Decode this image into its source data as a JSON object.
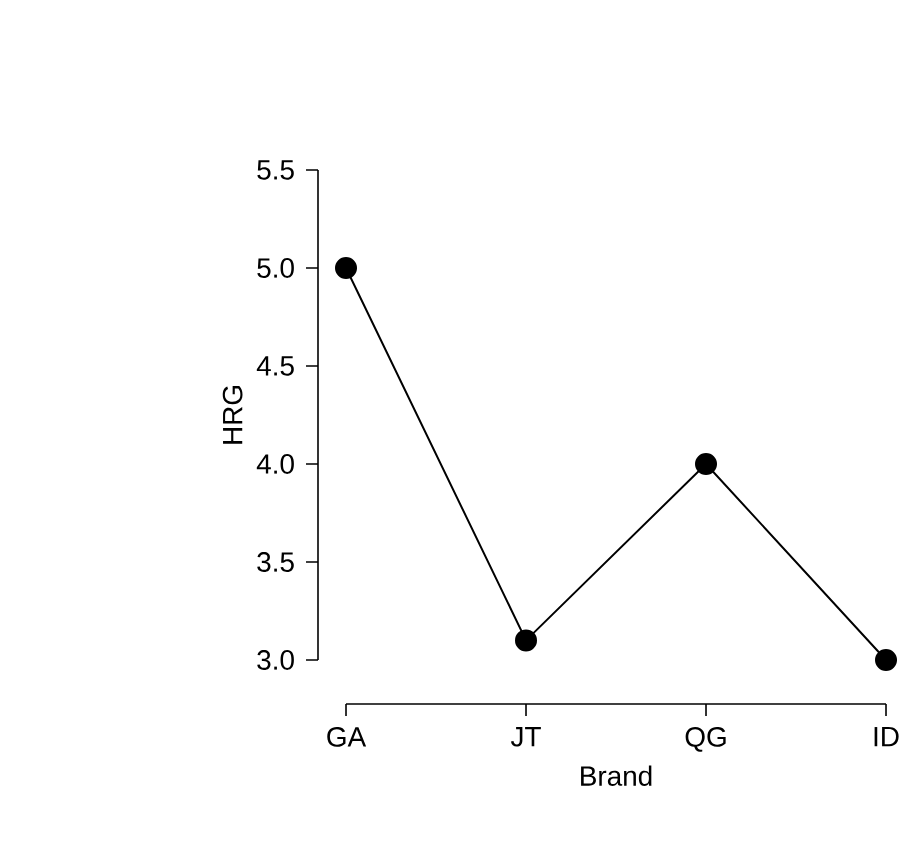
{
  "chart_data": {
    "type": "line",
    "xlabel": "Brand",
    "ylabel": "HRG",
    "categories": [
      "GA",
      "JT",
      "QG",
      "ID"
    ],
    "values": [
      5.0,
      3.1,
      4.0,
      3.0
    ],
    "color": "#000000",
    "marker": "circle",
    "line_style": "solid",
    "grid": false,
    "ylim": [
      3.0,
      5.5
    ],
    "yticks": [
      {
        "value": 3.0,
        "label": "3.0"
      },
      {
        "value": 3.5,
        "label": "3.5"
      },
      {
        "value": 4.0,
        "label": "4.0"
      },
      {
        "value": 4.5,
        "label": "4.5"
      },
      {
        "value": 5.0,
        "label": "5.0"
      },
      {
        "value": 5.5,
        "label": "5.5"
      }
    ]
  }
}
